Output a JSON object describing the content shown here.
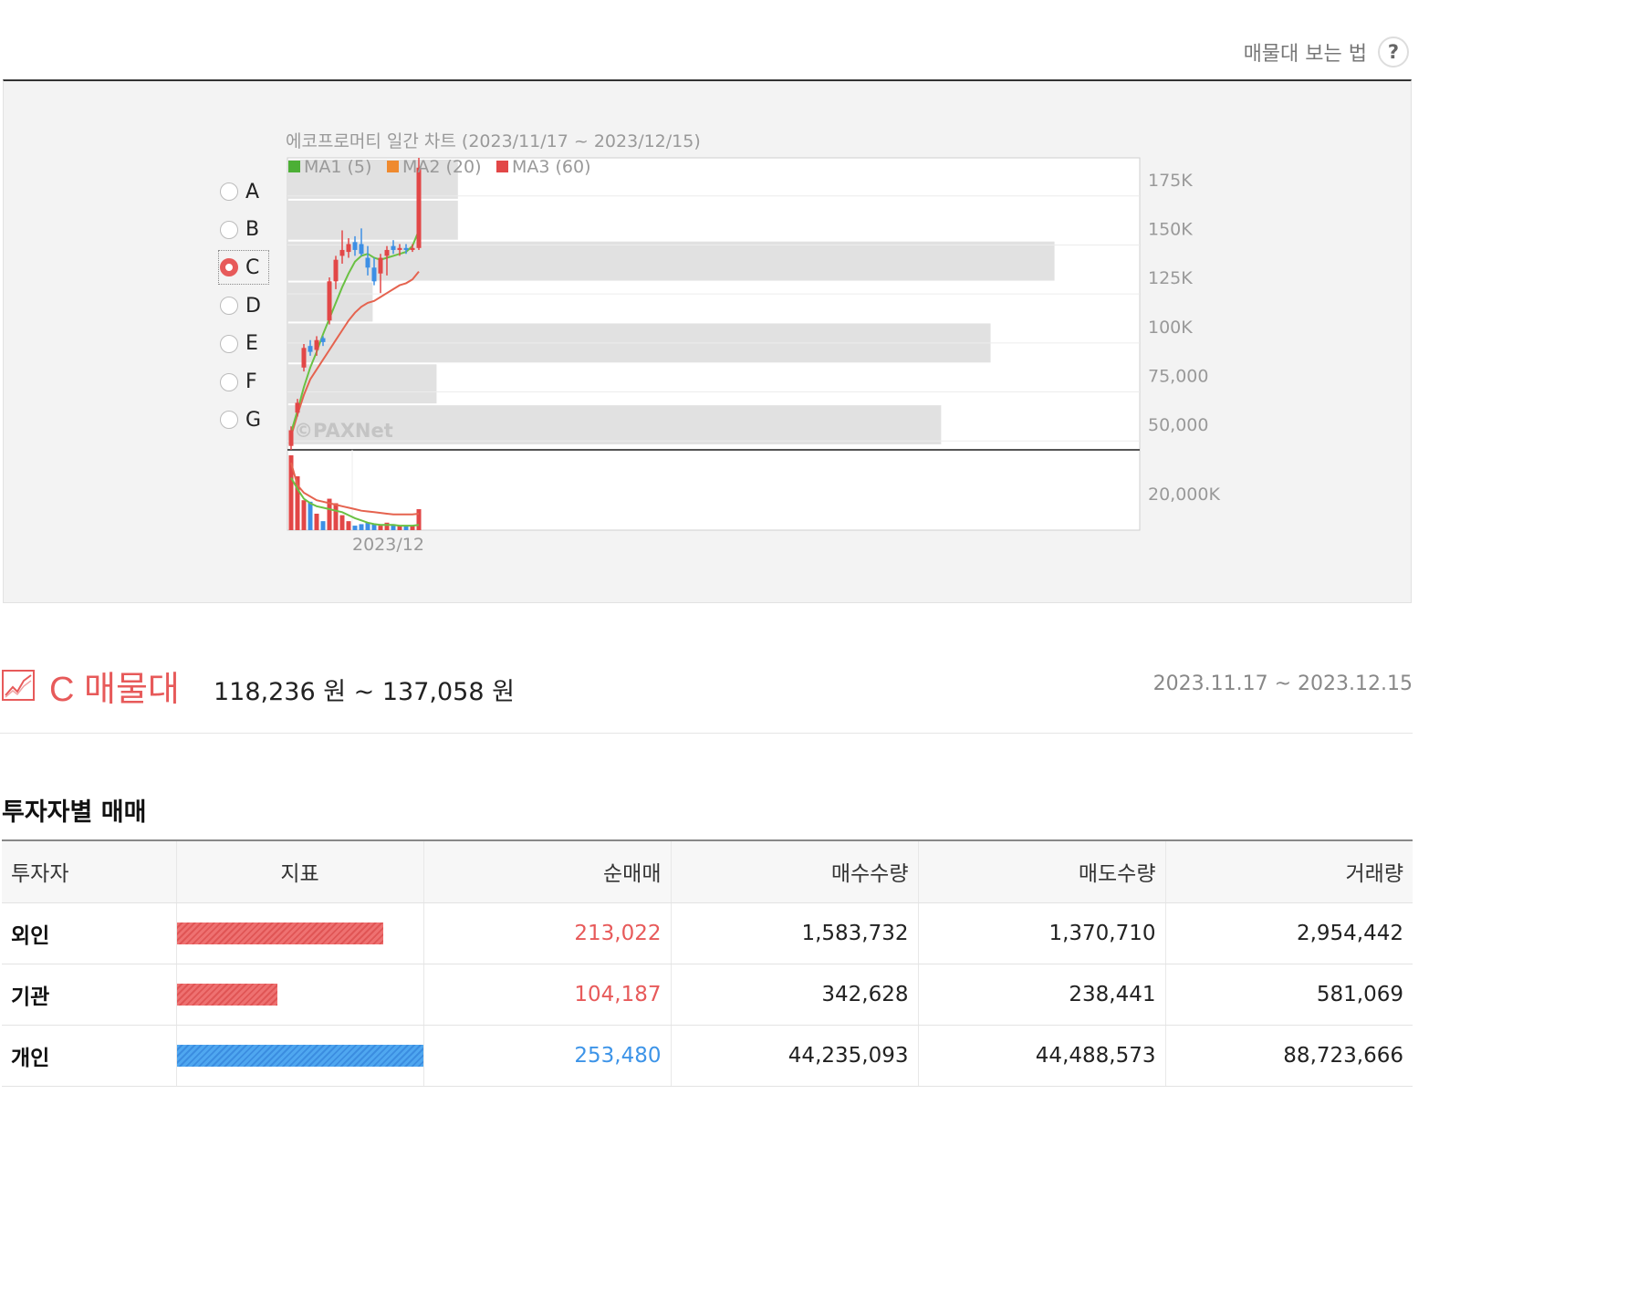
{
  "help": {
    "label": "매물대 보는 법",
    "icon": "?"
  },
  "selector": {
    "options": [
      "A",
      "B",
      "C",
      "D",
      "E",
      "F",
      "G"
    ],
    "selected": "C"
  },
  "chart_data": {
    "type": "candlestick-volume-profile",
    "title": "에코프로머티 일간 차트 (2023/11/17 ~ 2023/12/15)",
    "legend": [
      {
        "name": "MA1 (5)",
        "color": "#4caf35"
      },
      {
        "name": "MA2 (20)",
        "color": "#ef8a2f"
      },
      {
        "name": "MA3 (60)",
        "color": "#e24747"
      }
    ],
    "price_ticks": [
      "175K",
      "150K",
      "125K",
      "100K",
      "75,000",
      "50,000"
    ],
    "price_tick_values": [
      175000,
      150000,
      125000,
      100000,
      75000,
      50000
    ],
    "volume_tick": "20,000K",
    "x_label": "2023/12",
    "watermark": "©PAXNet",
    "price_range": [
      38000,
      187000
    ],
    "volume_profile": [
      {
        "band": "A",
        "fraction": 0.2
      },
      {
        "band": "B",
        "fraction": 0.2
      },
      {
        "band": "C",
        "fraction": 0.9
      },
      {
        "band": "D",
        "fraction": 0.1
      },
      {
        "band": "E",
        "fraction": 0.825
      },
      {
        "band": "F",
        "fraction": 0.175
      },
      {
        "band": "G",
        "fraction": 0.767
      }
    ],
    "candles": [
      {
        "o": 40000,
        "h": 50000,
        "l": 38000,
        "c": 48000
      },
      {
        "o": 57000,
        "h": 64000,
        "l": 55000,
        "c": 62000
      },
      {
        "o": 80000,
        "h": 92000,
        "l": 78000,
        "c": 90000
      },
      {
        "o": 91000,
        "h": 94000,
        "l": 86000,
        "c": 88000
      },
      {
        "o": 89000,
        "h": 96000,
        "l": 86000,
        "c": 94000
      },
      {
        "o": 95000,
        "h": 96000,
        "l": 91000,
        "c": 93000
      },
      {
        "o": 104000,
        "h": 126000,
        "l": 102000,
        "c": 124000
      },
      {
        "o": 124000,
        "h": 137000,
        "l": 120000,
        "c": 135000
      },
      {
        "o": 137000,
        "h": 150000,
        "l": 133000,
        "c": 140000
      },
      {
        "o": 139000,
        "h": 146000,
        "l": 136000,
        "c": 143000
      },
      {
        "o": 144000,
        "h": 147000,
        "l": 137000,
        "c": 140000
      },
      {
        "o": 143000,
        "h": 151000,
        "l": 137000,
        "c": 138000
      },
      {
        "o": 136000,
        "h": 142000,
        "l": 127000,
        "c": 131000
      },
      {
        "o": 131000,
        "h": 136000,
        "l": 122000,
        "c": 124000
      },
      {
        "o": 128000,
        "h": 138000,
        "l": 118000,
        "c": 136000
      },
      {
        "o": 137000,
        "h": 142000,
        "l": 127000,
        "c": 140000
      },
      {
        "o": 142000,
        "h": 145000,
        "l": 138000,
        "c": 140000
      },
      {
        "o": 140000,
        "h": 143000,
        "l": 137000,
        "c": 141000
      },
      {
        "o": 141000,
        "h": 143000,
        "l": 138000,
        "c": 140000
      },
      {
        "o": 140000,
        "h": 143000,
        "l": 139000,
        "c": 141000
      },
      {
        "o": 141000,
        "h": 187000,
        "l": 140000,
        "c": 182000
      }
    ],
    "ma_short": [
      47000,
      58000,
      70000,
      80000,
      88000,
      97000,
      105000,
      113000,
      121000,
      128000,
      134000,
      137000,
      138000,
      136000,
      135000,
      136000,
      137000,
      138000,
      139000,
      142000,
      150000
    ],
    "ma_long": [
      45000,
      56000,
      66000,
      74000,
      79000,
      84000,
      89000,
      94000,
      99000,
      104000,
      108000,
      111000,
      113000,
      114000,
      116000,
      118000,
      120000,
      122000,
      123000,
      125000,
      129000
    ],
    "volume_fraction": [
      1.0,
      0.72,
      0.4,
      0.38,
      0.22,
      0.12,
      0.42,
      0.36,
      0.2,
      0.12,
      0.06,
      0.08,
      0.1,
      0.08,
      0.06,
      0.1,
      0.08,
      0.06,
      0.05,
      0.06,
      0.28
    ],
    "volume_ma_fraction": [
      0.9,
      0.6,
      0.5,
      0.45,
      0.4,
      0.38,
      0.36,
      0.34,
      0.32,
      0.3,
      0.28,
      0.26,
      0.25,
      0.24,
      0.23,
      0.22,
      0.21,
      0.21,
      0.21,
      0.21,
      0.22
    ],
    "volume_ma2_fraction": [
      0.7,
      0.55,
      0.42,
      0.36,
      0.32,
      0.3,
      0.28,
      0.26,
      0.24,
      0.2,
      0.16,
      0.13,
      0.1,
      0.08,
      0.07,
      0.07,
      0.07,
      0.06,
      0.06,
      0.06,
      0.07
    ]
  },
  "section": {
    "title": "C 매물대",
    "range": "118,236 원 ~ 137,058 원",
    "dates": "2023.11.17 ~ 2023.12.15"
  },
  "investor_table": {
    "title": "투자자별 매매",
    "headers": [
      "투자자",
      "지표",
      "순매매",
      "매수수량",
      "매도수량",
      "거래량"
    ],
    "rows": [
      {
        "investor": "외인",
        "net": "213,022",
        "buy": "1,583,732",
        "sell": "1,370,710",
        "volume": "2,954,442",
        "bar_fraction": 0.84,
        "direction": "positive"
      },
      {
        "investor": "기관",
        "net": "104,187",
        "buy": "342,628",
        "sell": "238,441",
        "volume": "581,069",
        "bar_fraction": 0.41,
        "direction": "positive"
      },
      {
        "investor": "개인",
        "net": "253,480",
        "buy": "44,235,093",
        "sell": "44,488,573",
        "volume": "88,723,666",
        "bar_fraction": 1.0,
        "direction": "negative"
      }
    ]
  },
  "colors": {
    "accent": "#e75a5a",
    "up": "#e24747",
    "down": "#3d8fe5",
    "profile": "#e1e1e1"
  }
}
